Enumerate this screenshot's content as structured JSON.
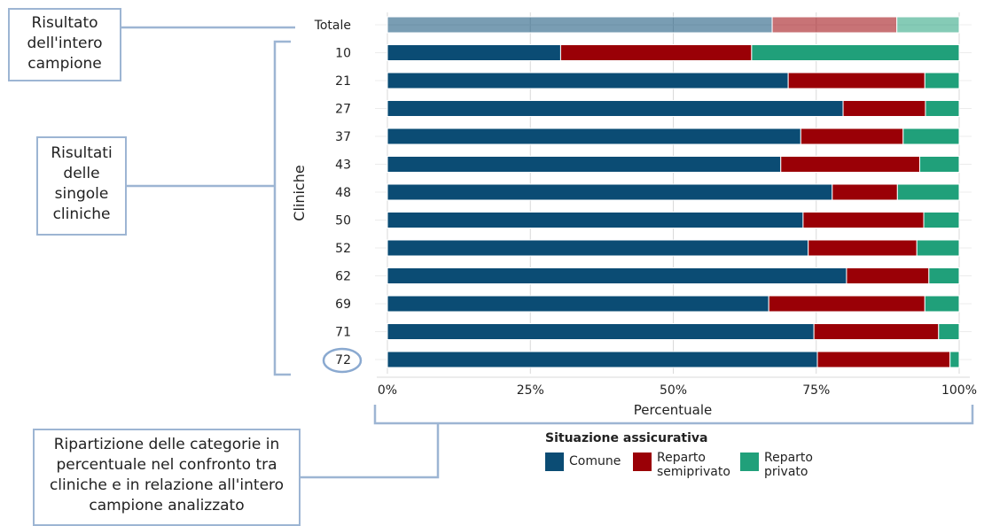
{
  "callouts": {
    "total": "Risultato dell'intero campione",
    "clinics": "Risultati delle singole cliniche",
    "breakdown": "Ripartizione delle categorie in percentuale nel confronto tra cliniche e in relazione all'intero campione analizzato"
  },
  "colors": {
    "comune": "#0b4c74",
    "semiprivato": "#9a0006",
    "privato": "#20a07a",
    "grid": "#d9d9d9",
    "callout_line": "#9db5d3"
  },
  "legend": {
    "title": "Situazione assicurativa",
    "items": [
      {
        "label": "Comune",
        "color": "#0b4c74"
      },
      {
        "label": "Reparto semiprivato",
        "color": "#9a0006"
      },
      {
        "label": "Reparto privato",
        "color": "#20a07a"
      }
    ]
  },
  "chart_data": {
    "type": "bar",
    "orientation": "horizontal",
    "stacked": "percent",
    "xlabel": "Percentuale",
    "ylabel": "Cliniche",
    "xlim": [
      0,
      100
    ],
    "xticks": [
      "0%",
      "25%",
      "50%",
      "75%",
      "100%"
    ],
    "categories": [
      "Totale",
      "10",
      "21",
      "27",
      "37",
      "43",
      "48",
      "50",
      "52",
      "62",
      "69",
      "71",
      "72"
    ],
    "highlighted_category": "72",
    "faded_category": "Totale",
    "series": [
      {
        "name": "Comune",
        "values": [
          67.3,
          30.3,
          70.1,
          79.7,
          72.3,
          68.8,
          77.8,
          72.7,
          73.6,
          80.3,
          66.7,
          74.6,
          75.2
        ]
      },
      {
        "name": "Reparto semiprivato",
        "values": [
          21.8,
          33.4,
          23.9,
          14.4,
          17.9,
          24.3,
          11.4,
          21.1,
          19.0,
          14.4,
          27.3,
          21.8,
          23.2
        ]
      },
      {
        "name": "Reparto privato",
        "values": [
          10.9,
          36.3,
          6.0,
          5.9,
          9.8,
          6.9,
          10.8,
          6.2,
          7.4,
          5.3,
          6.0,
          3.6,
          1.6
        ]
      }
    ],
    "grid": true,
    "legend_position": "bottom"
  }
}
